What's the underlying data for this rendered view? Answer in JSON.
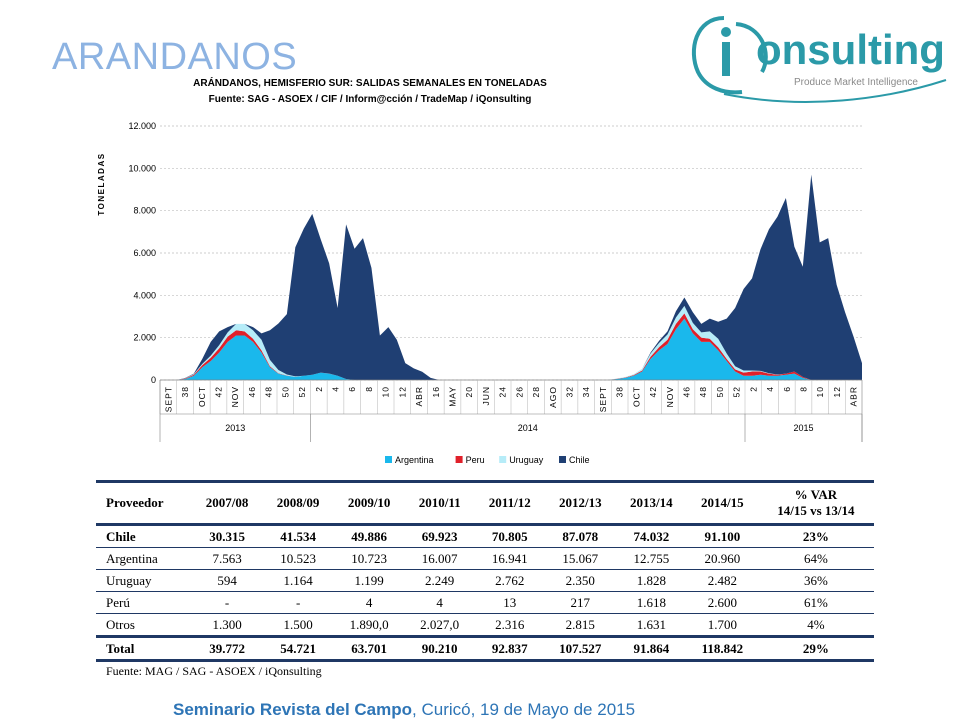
{
  "slide_title": "ARANDANOS",
  "logo": {
    "text": "iQonsulting",
    "tagline": "Produce Market Intelligence"
  },
  "footer": {
    "bold": "Seminario Revista del Campo",
    "rest": ", Curicó, 19 de Mayo de 2015"
  },
  "colors": {
    "argentina": "#1ab8ec",
    "peru": "#e0202a",
    "uruguay": "#b6ecf8",
    "chile": "#1f3f73"
  },
  "chart_data": {
    "type": "area",
    "title": "ARÁNDANOS, HEMISFERIO SUR: SALIDAS SEMANALES EN TONELADAS",
    "subtitle": "Fuente: SAG - ASOEX / CIF / Inform@cción / TradeMap / iQonsulting",
    "ylabel": "TONELADAS",
    "ylim": [
      0,
      12000
    ],
    "y_ticks": [
      "0",
      "2.000",
      "4.000",
      "6.000",
      "8.000",
      "10.000",
      "12.000"
    ],
    "x_labels": [
      "SEPT",
      "38",
      "OCT",
      "42",
      "NOV",
      "46",
      "48",
      "50",
      "52",
      "2",
      "4",
      "6",
      "8",
      "10",
      "12",
      "ABR",
      "16",
      "MAY",
      "20",
      "JUN",
      "24",
      "26",
      "28",
      "AGO",
      "32",
      "34",
      "SEPT",
      "38",
      "OCT",
      "42",
      "NOV",
      "46",
      "48",
      "50",
      "52",
      "2",
      "4",
      "6",
      "8",
      "10",
      "12",
      "ABR"
    ],
    "years": [
      {
        "label": "2013",
        "from": 0,
        "to": 8
      },
      {
        "label": "2014",
        "from": 9,
        "to": 34
      },
      {
        "label": "2015",
        "from": 35,
        "to": 41
      }
    ],
    "legend": [
      "Argentina",
      "Peru",
      "Uruguay",
      "Chile"
    ],
    "legend_position": "bottom",
    "x": [
      0,
      1,
      2,
      3,
      4,
      5,
      6,
      7,
      8,
      9,
      10,
      11,
      12,
      13,
      14,
      15,
      16,
      17,
      18,
      19,
      20,
      21,
      22,
      23,
      24,
      25,
      26,
      27,
      28,
      29,
      30,
      31,
      32,
      33,
      34,
      35,
      36,
      37,
      38,
      39,
      40,
      41,
      42,
      43,
      44,
      45,
      46,
      47,
      48,
      49,
      50,
      51,
      52,
      53,
      54,
      55,
      56,
      57,
      58,
      59,
      60,
      61,
      62,
      63,
      64,
      65,
      66,
      67,
      68,
      69,
      70,
      71,
      72,
      73,
      74,
      75,
      76,
      77,
      78,
      79,
      80,
      81,
      82,
      83
    ],
    "series": [
      {
        "name": "Argentina",
        "values": [
          0,
          0,
          0,
          50,
          200,
          600,
          900,
          1300,
          1800,
          2100,
          2100,
          1800,
          1300,
          600,
          300,
          200,
          150,
          200,
          250,
          350,
          300,
          200,
          50,
          0,
          0,
          0,
          0,
          0,
          0,
          0,
          0,
          0,
          0,
          0,
          0,
          0,
          0,
          0,
          0,
          0,
          0,
          0,
          0,
          0,
          0,
          0,
          0,
          0,
          0,
          0,
          0,
          0,
          0,
          0,
          50,
          100,
          200,
          400,
          1000,
          1400,
          1700,
          2400,
          2900,
          2200,
          1800,
          1800,
          1400,
          900,
          400,
          200,
          200,
          250,
          200,
          200,
          250,
          300,
          100,
          0,
          0,
          0,
          0,
          0,
          0,
          0
        ]
      },
      {
        "name": "Peru",
        "values": [
          0,
          0,
          0,
          20,
          50,
          100,
          150,
          200,
          250,
          250,
          200,
          150,
          100,
          50,
          20,
          10,
          0,
          0,
          0,
          0,
          10,
          0,
          0,
          0,
          0,
          0,
          0,
          0,
          0,
          0,
          0,
          0,
          0,
          0,
          0,
          0,
          0,
          0,
          0,
          0,
          0,
          0,
          0,
          0,
          0,
          0,
          0,
          0,
          0,
          0,
          0,
          0,
          0,
          0,
          10,
          20,
          30,
          50,
          100,
          150,
          200,
          250,
          250,
          200,
          200,
          150,
          150,
          100,
          100,
          150,
          200,
          150,
          100,
          50,
          50,
          100,
          50,
          0,
          0,
          0,
          0,
          0,
          0,
          0
        ]
      },
      {
        "name": "Uruguay",
        "values": [
          0,
          0,
          0,
          10,
          30,
          60,
          100,
          150,
          200,
          300,
          350,
          400,
          500,
          300,
          150,
          50,
          20,
          0,
          0,
          0,
          0,
          0,
          0,
          0,
          0,
          0,
          0,
          0,
          0,
          0,
          0,
          0,
          0,
          0,
          0,
          0,
          0,
          0,
          0,
          0,
          0,
          0,
          0,
          0,
          0,
          0,
          0,
          0,
          0,
          0,
          0,
          0,
          0,
          0,
          10,
          20,
          40,
          80,
          150,
          200,
          250,
          300,
          350,
          300,
          250,
          350,
          400,
          250,
          150,
          100,
          50,
          30,
          20,
          10,
          0,
          0,
          0,
          0,
          0,
          0,
          0,
          0,
          0,
          0
        ]
      },
      {
        "name": "Chile",
        "values": [
          0,
          0,
          0,
          20,
          20,
          240,
          650,
          650,
          250,
          0,
          0,
          150,
          300,
          1400,
          2200,
          2850,
          6100,
          6950,
          7600,
          6300,
          5200,
          3200,
          7300,
          6200,
          6700,
          5300,
          2100,
          2500,
          1900,
          800,
          550,
          390,
          100,
          0,
          0,
          0,
          0,
          0,
          0,
          0,
          0,
          0,
          0,
          0,
          0,
          0,
          0,
          0,
          0,
          0,
          0,
          0,
          0,
          0,
          0,
          0,
          0,
          0,
          50,
          100,
          150,
          300,
          400,
          500,
          400,
          600,
          800,
          1650,
          2750,
          3850,
          4350,
          5750,
          6800,
          7450,
          8300,
          5900,
          5200,
          9700,
          6500,
          6700,
          4500,
          3200,
          2050,
          800
        ]
      }
    ]
  },
  "table": {
    "headers": [
      "Proveedor",
      "2007/08",
      "2008/09",
      "2009/10",
      "2010/11",
      "2011/12",
      "2012/13",
      "2013/14",
      "2014/15",
      "% VAR",
      "14/15 vs 13/14"
    ],
    "rows": [
      {
        "name": "Chile",
        "values": [
          "30.315",
          "41.534",
          "49.886",
          "69.923",
          "70.805",
          "87.078",
          "74.032",
          "91.100",
          "23%"
        ]
      },
      {
        "name": "Argentina",
        "values": [
          "7.563",
          "10.523",
          "10.723",
          "16.007",
          "16.941",
          "15.067",
          "12.755",
          "20.960",
          "64%"
        ]
      },
      {
        "name": "Uruguay",
        "values": [
          "594",
          "1.164",
          "1.199",
          "2.249",
          "2.762",
          "2.350",
          "1.828",
          "2.482",
          "36%"
        ]
      },
      {
        "name": "Perú",
        "values": [
          "-",
          "-",
          "4",
          "4",
          "13",
          "217",
          "1.618",
          "2.600",
          "61%"
        ]
      },
      {
        "name": "Otros",
        "values": [
          "1.300",
          "1.500",
          "1.890,0",
          "2.027,0",
          "2.316",
          "2.815",
          "1.631",
          "1.700",
          "4%"
        ]
      }
    ],
    "total": {
      "name": "Total",
      "values": [
        "39.772",
        "54.721",
        "63.701",
        "90.210",
        "92.837",
        "107.527",
        "91.864",
        "118.842",
        "29%"
      ]
    },
    "source": "Fuente: MAG / SAG - ASOEX / iQonsulting"
  }
}
